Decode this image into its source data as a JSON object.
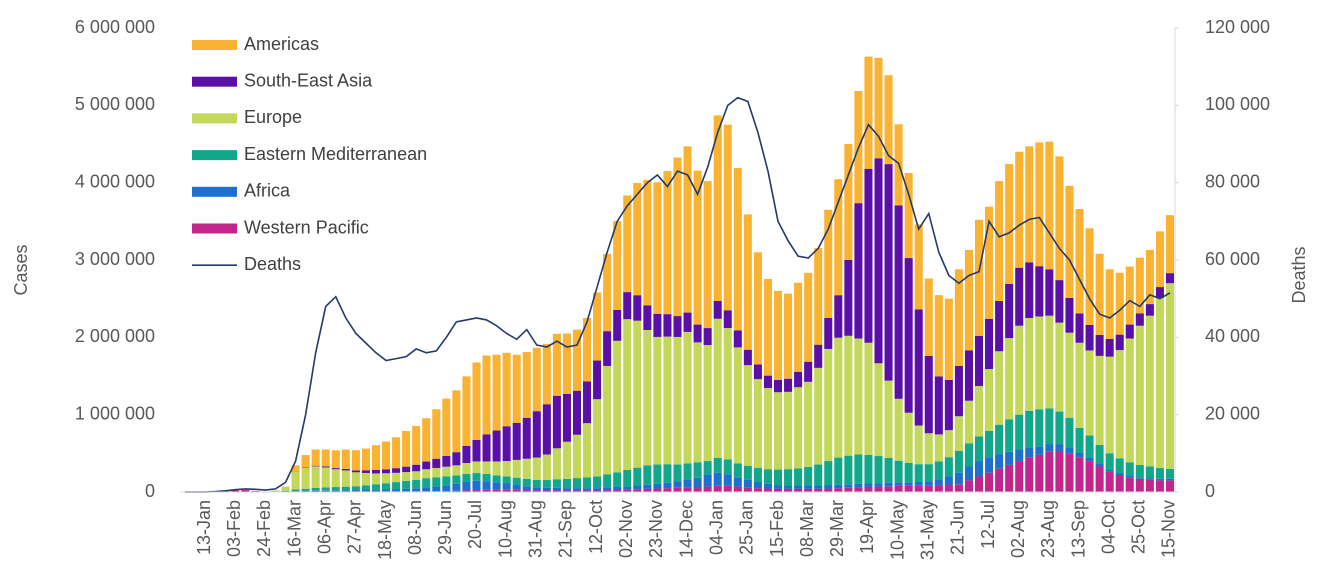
{
  "chart_data": {
    "type": "bar",
    "stacked": true,
    "legend": "upper left",
    "y_label": "Cases",
    "y2_label": "Deaths",
    "ylim": [
      0,
      6000000
    ],
    "yticks": [
      0,
      {
        "value": 1000000,
        "label": "1 000 000"
      },
      {
        "value": 2000000,
        "label": "2 000 000"
      },
      {
        "value": 3000000,
        "label": "3 000 000"
      },
      {
        "value": 4000000,
        "label": "4 000 000"
      },
      {
        "value": 5000000,
        "label": "5 000 000"
      },
      {
        "value": 6000000,
        "label": "6 000 000"
      }
    ],
    "y2lim": [
      0,
      120000
    ],
    "y2ticks": [
      0,
      {
        "value": 20000,
        "label": "20 000"
      },
      {
        "value": 40000,
        "label": "40 000"
      },
      {
        "value": 60000,
        "label": "60 000"
      },
      {
        "value": 80000,
        "label": "80 000"
      },
      {
        "value": 100000,
        "label": "100 000"
      },
      {
        "value": 120000,
        "label": "120 000"
      }
    ],
    "categories": [
      null,
      null,
      "13-Jan",
      null,
      null,
      "03-Feb",
      null,
      null,
      "24-Feb",
      null,
      null,
      "16-Mar",
      null,
      null,
      "06-Apr",
      null,
      null,
      "27-Apr",
      null,
      null,
      "18-May",
      null,
      null,
      "08-Jun",
      null,
      null,
      "29-Jun",
      null,
      null,
      "20-Jul",
      null,
      null,
      "10-Aug",
      null,
      null,
      "31-Aug",
      null,
      null,
      "21-Sep",
      null,
      null,
      "12-Oct",
      null,
      null,
      "02-Nov",
      null,
      null,
      "23-Nov",
      null,
      null,
      "14-Dec",
      null,
      null,
      "04-Jan",
      null,
      null,
      "25-Jan",
      null,
      null,
      "15-Feb",
      null,
      null,
      "08-Mar",
      null,
      null,
      "29-Mar",
      null,
      null,
      "19-Apr",
      null,
      null,
      "10-May",
      null,
      null,
      "31-May",
      null,
      null,
      "21-Jun",
      null,
      null,
      "12-Jul",
      null,
      null,
      "02-Aug",
      null,
      null,
      "23-Aug",
      null,
      null,
      "13-Sep",
      null,
      null,
      "04-Oct",
      null,
      null,
      "25-Oct",
      null,
      null,
      "15-Nov"
    ],
    "series": [
      {
        "name": "Americas",
        "color": "#f9b232",
        "values": [
          0,
          0,
          0,
          0,
          0,
          0,
          0,
          0,
          0,
          1000,
          5000,
          80000,
          160000,
          210000,
          220000,
          230000,
          250000,
          260000,
          280000,
          320000,
          360000,
          400000,
          460000,
          500000,
          560000,
          640000,
          740000,
          800000,
          900000,
          1000000,
          1020000,
          980000,
          950000,
          880000,
          850000,
          820000,
          780000,
          800000,
          780000,
          790000,
          820000,
          880000,
          1000000,
          1150000,
          1250000,
          1450000,
          1620000,
          1700000,
          1850000,
          2050000,
          2150000,
          1990000,
          1900000,
          2400000,
          2400000,
          2100000,
          1750000,
          1450000,
          1250000,
          1150000,
          1100000,
          1150000,
          1150000,
          1250000,
          1400000,
          1500000,
          1500000,
          1450000,
          1450000,
          1300000,
          1150000,
          1050000,
          1100000,
          1100000,
          1000000,
          1050000,
          1050000,
          1250000,
          1300000,
          1500000,
          1450000,
          1550000,
          1550000,
          1500000,
          1500000,
          1600000,
          1650000,
          1600000,
          1450000,
          1350000,
          1250000,
          1050000,
          900000,
          800000,
          750000,
          720000,
          700000,
          720000,
          750000
        ]
      },
      {
        "name": "South-East Asia",
        "color": "#5a0fa6",
        "values": [
          0,
          0,
          0,
          0,
          0,
          0,
          0,
          0,
          0,
          0,
          0,
          2000,
          5000,
          8000,
          12000,
          15000,
          20000,
          25000,
          35000,
          45000,
          50000,
          60000,
          70000,
          85000,
          100000,
          120000,
          140000,
          170000,
          220000,
          280000,
          350000,
          400000,
          450000,
          480000,
          530000,
          600000,
          650000,
          680000,
          620000,
          570000,
          540000,
          500000,
          450000,
          400000,
          350000,
          330000,
          320000,
          300000,
          290000,
          270000,
          250000,
          230000,
          220000,
          230000,
          230000,
          220000,
          200000,
          190000,
          160000,
          160000,
          170000,
          200000,
          260000,
          300000,
          400000,
          550000,
          980000,
          1750000,
          2250000,
          2650000,
          2800000,
          2500000,
          2000000,
          1500000,
          1000000,
          750000,
          650000,
          650000,
          650000,
          650000,
          650000,
          650000,
          700000,
          750000,
          720000,
          650000,
          600000,
          550000,
          450000,
          380000,
          330000,
          270000,
          230000,
          200000,
          180000,
          160000,
          150000,
          140000,
          130000
        ]
      },
      {
        "name": "Europe",
        "color": "#c3d75b",
        "values": [
          0,
          0,
          0,
          0,
          0,
          0,
          0,
          0,
          1000,
          10000,
          50000,
          230000,
          270000,
          280000,
          260000,
          230000,
          210000,
          180000,
          160000,
          140000,
          130000,
          120000,
          115000,
          110000,
          115000,
          120000,
          125000,
          130000,
          140000,
          150000,
          160000,
          180000,
          200000,
          230000,
          260000,
          290000,
          330000,
          400000,
          480000,
          560000,
          700000,
          1000000,
          1400000,
          1700000,
          1950000,
          1900000,
          1750000,
          1650000,
          1650000,
          1650000,
          1700000,
          1550000,
          1500000,
          1800000,
          1700000,
          1500000,
          1300000,
          1150000,
          1050000,
          1000000,
          1000000,
          1050000,
          1100000,
          1250000,
          1450000,
          1550000,
          1550000,
          1500000,
          1450000,
          1200000,
          1000000,
          800000,
          650000,
          500000,
          400000,
          350000,
          350000,
          450000,
          550000,
          650000,
          800000,
          950000,
          1050000,
          1150000,
          1200000,
          1200000,
          1200000,
          1150000,
          1100000,
          1100000,
          1100000,
          1150000,
          1250000,
          1400000,
          1600000,
          1800000,
          1950000,
          2200000,
          2400000
        ]
      },
      {
        "name": "Eastern Mediterranean",
        "color": "#12a78a",
        "values": [
          0,
          0,
          0,
          0,
          0,
          0,
          0,
          0,
          1000,
          5000,
          10000,
          20000,
          25000,
          30000,
          35000,
          40000,
          45000,
          50000,
          60000,
          70000,
          80000,
          90000,
          100000,
          110000,
          120000,
          120000,
          115000,
          110000,
          105000,
          100000,
          95000,
          90000,
          90000,
          95000,
          95000,
          95000,
          100000,
          110000,
          120000,
          130000,
          140000,
          150000,
          170000,
          190000,
          210000,
          230000,
          250000,
          250000,
          240000,
          220000,
          210000,
          200000,
          180000,
          190000,
          190000,
          180000,
          180000,
          180000,
          190000,
          200000,
          210000,
          220000,
          240000,
          270000,
          310000,
          350000,
          370000,
          380000,
          370000,
          350000,
          320000,
          280000,
          250000,
          230000,
          220000,
          230000,
          250000,
          280000,
          300000,
          320000,
          340000,
          380000,
          420000,
          450000,
          470000,
          480000,
          460000,
          420000,
          380000,
          320000,
          280000,
          240000,
          210000,
          190000,
          170000,
          160000,
          150000,
          140000,
          130000
        ]
      },
      {
        "name": "Africa",
        "color": "#1f6fcf",
        "values": [
          0,
          0,
          0,
          0,
          0,
          0,
          0,
          0,
          0,
          0,
          1000,
          2000,
          5000,
          7000,
          8000,
          9000,
          12000,
          15000,
          18000,
          22000,
          25000,
          30000,
          35000,
          40000,
          50000,
          60000,
          75000,
          90000,
          110000,
          120000,
          110000,
          90000,
          75000,
          60000,
          50000,
          40000,
          35000,
          35000,
          30000,
          30000,
          30000,
          30000,
          35000,
          40000,
          45000,
          50000,
          55000,
          60000,
          70000,
          80000,
          100000,
          120000,
          150000,
          170000,
          150000,
          120000,
          100000,
          80000,
          60000,
          50000,
          45000,
          45000,
          45000,
          45000,
          45000,
          45000,
          45000,
          45000,
          45000,
          45000,
          45000,
          45000,
          45000,
          50000,
          60000,
          80000,
          110000,
          150000,
          180000,
          200000,
          200000,
          190000,
          170000,
          150000,
          130000,
          110000,
          100000,
          90000,
          80000,
          60000,
          50000,
          40000,
          30000,
          25000,
          25000,
          20000,
          20000,
          20000,
          20000
        ]
      },
      {
        "name": "Western Pacific",
        "color": "#c2258b",
        "values": [
          0,
          0,
          0,
          1000,
          10000,
          20000,
          25000,
          12000,
          5000,
          5000,
          5000,
          10000,
          12000,
          15000,
          15000,
          15000,
          12000,
          10000,
          8000,
          8000,
          8000,
          8000,
          8000,
          8000,
          9000,
          10000,
          12000,
          15000,
          20000,
          25000,
          30000,
          35000,
          35000,
          30000,
          25000,
          20000,
          20000,
          20000,
          20000,
          20000,
          20000,
          20000,
          25000,
          25000,
          30000,
          35000,
          40000,
          45000,
          50000,
          55000,
          60000,
          65000,
          70000,
          80000,
          80000,
          70000,
          60000,
          50000,
          45000,
          40000,
          40000,
          40000,
          40000,
          40000,
          45000,
          50000,
          55000,
          60000,
          65000,
          70000,
          75000,
          80000,
          80000,
          80000,
          80000,
          85000,
          90000,
          100000,
          150000,
          200000,
          250000,
          300000,
          350000,
          400000,
          450000,
          480000,
          520000,
          530000,
          500000,
          450000,
          400000,
          330000,
          260000,
          220000,
          190000,
          170000,
          160000,
          150000,
          150000
        ]
      },
      {
        "name": "Deaths",
        "type": "line",
        "axis": "y2",
        "color": "#25396a",
        "values": [
          0,
          0,
          0,
          100,
          300,
          600,
          800,
          700,
          500,
          800,
          2500,
          8000,
          20000,
          36000,
          48000,
          50500,
          45000,
          41000,
          38500,
          36000,
          34000,
          34500,
          35000,
          37000,
          36000,
          36500,
          40000,
          44000,
          44500,
          45000,
          44500,
          43000,
          41000,
          39500,
          42000,
          38000,
          37500,
          39000,
          37500,
          38000,
          44000,
          53000,
          62000,
          70000,
          74000,
          77000,
          80000,
          82000,
          79000,
          83000,
          82000,
          77000,
          84000,
          93000,
          100000,
          102000,
          101000,
          93000,
          83000,
          70000,
          65000,
          61000,
          60500,
          63000,
          68000,
          75000,
          82000,
          89000,
          95000,
          92000,
          87000,
          85000,
          77000,
          68000,
          72000,
          62000,
          56000,
          54000,
          56000,
          57000,
          70000,
          66000,
          67000,
          69000,
          70500,
          71000,
          67000,
          63000,
          60000,
          55000,
          50000,
          46000,
          45000,
          47000,
          49500,
          48000,
          51000,
          50000,
          51500
        ]
      }
    ]
  }
}
